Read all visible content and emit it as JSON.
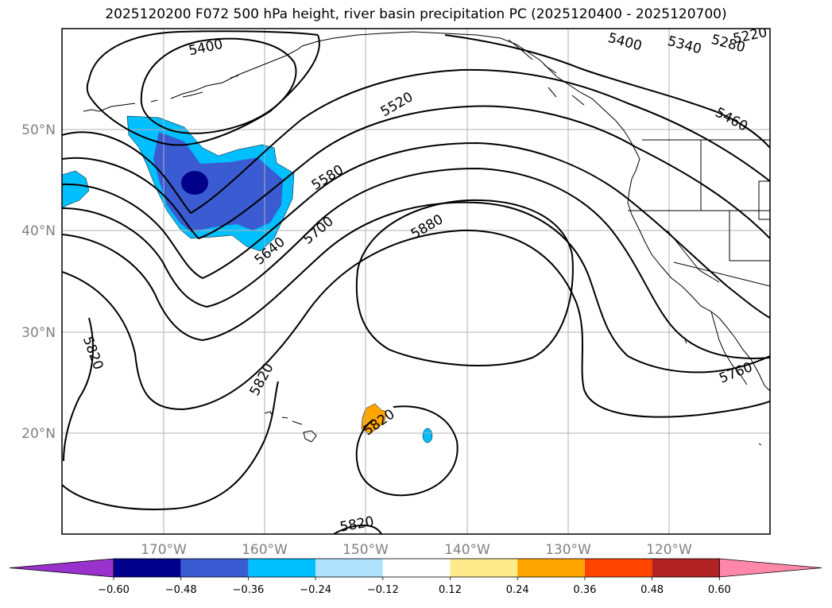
{
  "title": "2025120200 F072 500 hPa height, river basin precipitation PC (2025120400 - 2025120700)",
  "lat_labels": [
    "50°N",
    "40°N",
    "30°N",
    "20°N"
  ],
  "lon_labels": [
    "170°W",
    "160°W",
    "150°W",
    "140°W",
    "130°W",
    "120°W"
  ],
  "contour_labels": [
    "5400",
    "5400",
    "5340",
    "5280",
    "5220",
    "5520",
    "5460",
    "5580",
    "5700",
    "5880",
    "5640",
    "5820",
    "5820",
    "5820",
    "5760",
    "5820"
  ],
  "colorbar": {
    "ticks": [
      "−0.60",
      "−0.48",
      "−0.36",
      "−0.24",
      "−0.12",
      "0.12",
      "0.24",
      "0.36",
      "0.48",
      "0.60"
    ],
    "colors": [
      "#9932cc",
      "#00008b",
      "#3a5bd1",
      "#00bfff",
      "#aee3fb",
      "#ffffff",
      "#ffeb8c",
      "#ffa500",
      "#ff4500",
      "#b22222",
      "#ff88aa"
    ]
  },
  "colors": {
    "dark_negative": "#00008b",
    "mid_negative": "#3a5bd1",
    "light_negative": "#00bfff",
    "positive_orange": "#ffa500",
    "gridline": "#b0b0b0"
  }
}
